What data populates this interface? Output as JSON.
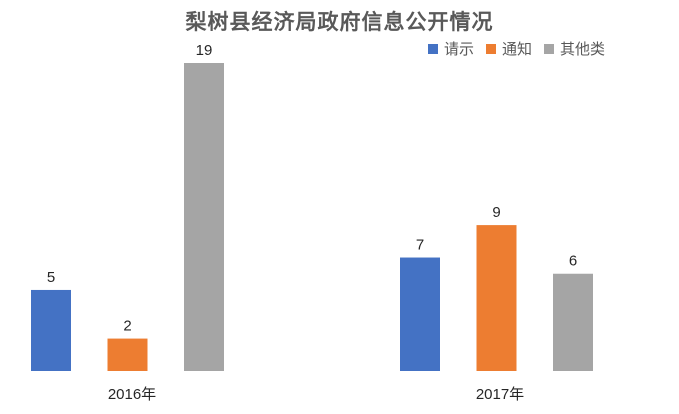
{
  "chart_data": {
    "type": "bar",
    "title": "梨树县经济局政府信息公开情况",
    "categories": [
      "2016年",
      "2017年"
    ],
    "series": [
      {
        "name": "请示",
        "values": [
          5,
          7
        ],
        "color": "#4472C4"
      },
      {
        "name": "通知",
        "values": [
          2,
          9
        ],
        "color": "#ED7D31"
      },
      {
        "name": "其他类",
        "values": [
          19,
          6
        ],
        "color": "#A5A5A5"
      }
    ],
    "xlabel": "",
    "ylabel": "",
    "ylim": [
      0,
      19
    ],
    "grid": false,
    "legend": "top-right",
    "data_labels": true
  }
}
